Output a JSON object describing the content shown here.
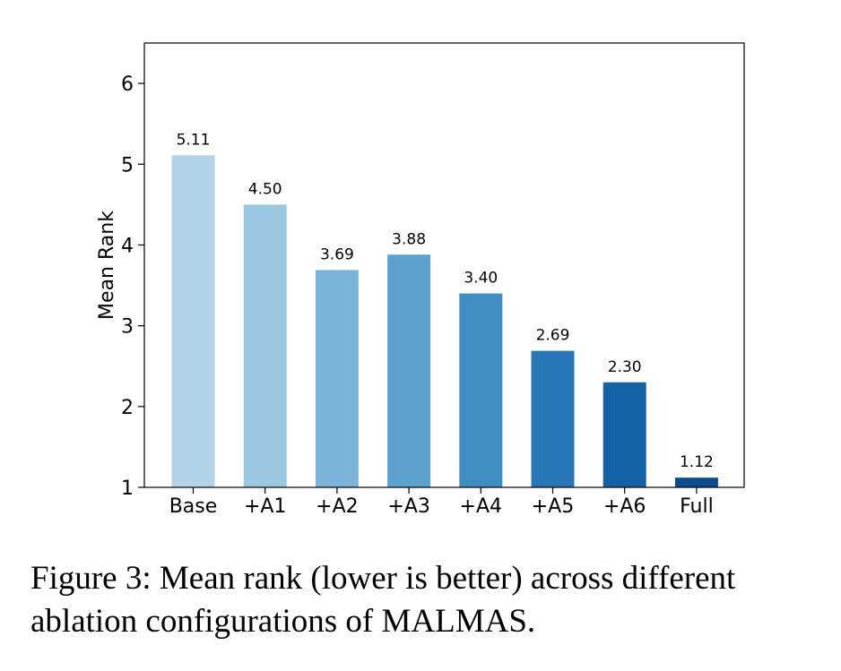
{
  "chart_data": {
    "type": "bar",
    "title": "",
    "xlabel": "",
    "ylabel": "Mean Rank",
    "categories": [
      "Base",
      "+A1",
      "+A2",
      "+A3",
      "+A4",
      "+A5",
      "+A6",
      "Full"
    ],
    "values": [
      5.11,
      4.5,
      3.69,
      3.88,
      3.4,
      2.69,
      2.3,
      1.12
    ],
    "data_labels": [
      "5.11",
      "4.50",
      "3.69",
      "3.88",
      "3.40",
      "2.69",
      "2.30",
      "1.12"
    ],
    "ylim": [
      1,
      6.5
    ],
    "yticks": [
      1,
      2,
      3,
      4,
      5,
      6
    ],
    "grid": false,
    "legend": "none",
    "colors": [
      "#b3d3e8",
      "#9ac8e0",
      "#7ab5d9",
      "#5ca2cf",
      "#3e8ec4",
      "#2776b8",
      "#1462a6",
      "#0b4d93"
    ]
  },
  "caption": {
    "line1": "Figure 3: Mean rank (lower is better) across different",
    "line2": "ablation configurations of MALMAS."
  }
}
